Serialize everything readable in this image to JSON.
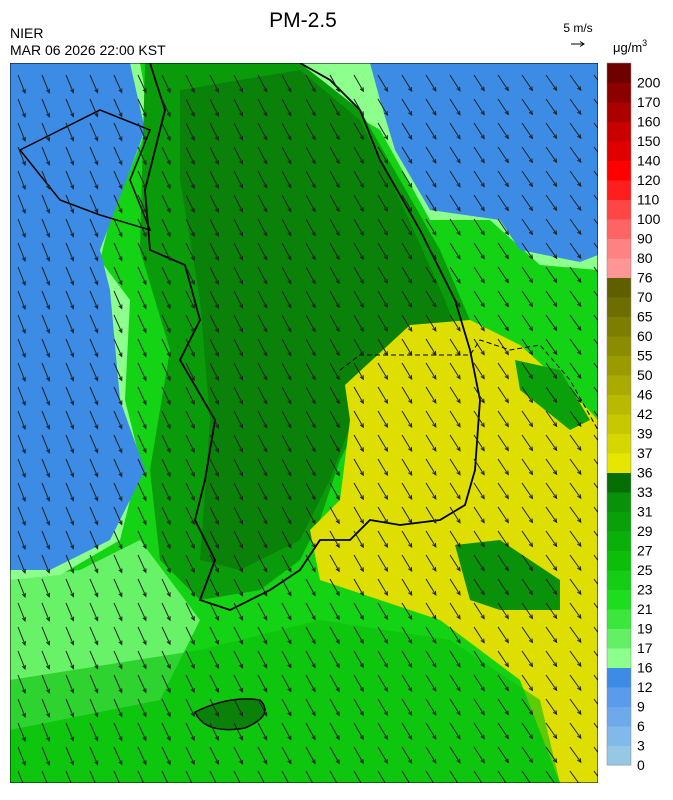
{
  "header": {
    "title": "PM-2.5",
    "agency": "NIER",
    "datetime": "MAR 06 2026 22:00 KST",
    "wind_scale": "5 m/s",
    "unit": {
      "base": "μg/m",
      "sup": "3"
    }
  },
  "colorbar": {
    "labels": [
      0,
      3,
      6,
      9,
      12,
      16,
      17,
      19,
      21,
      23,
      25,
      27,
      29,
      31,
      33,
      36,
      37,
      39,
      42,
      46,
      50,
      55,
      60,
      65,
      70,
      76,
      80,
      90,
      100,
      110,
      120,
      140,
      150,
      160,
      170,
      200
    ],
    "colors": [
      "#96c8e6",
      "#82b9eb",
      "#6eaaeb",
      "#5a9beb",
      "#3c8ce6",
      "#8cff8c",
      "#64f064",
      "#3ce63c",
      "#1edc1e",
      "#14cd14",
      "#0abe0a",
      "#0aaf0a",
      "#0aa00a",
      "#0a910a",
      "#056e05",
      "#e6e600",
      "#d7d700",
      "#c8c800",
      "#b9b900",
      "#aaaa00",
      "#9b9b00",
      "#8c8c00",
      "#7d7d00",
      "#6e6e00",
      "#5f5f00",
      "#ff9696",
      "#ff8282",
      "#ff6464",
      "#ff4646",
      "#ff1e1e",
      "#ff0000",
      "#e10000",
      "#c80000",
      "#aa0000",
      "#8c0000",
      "#6e0000"
    ]
  }
}
